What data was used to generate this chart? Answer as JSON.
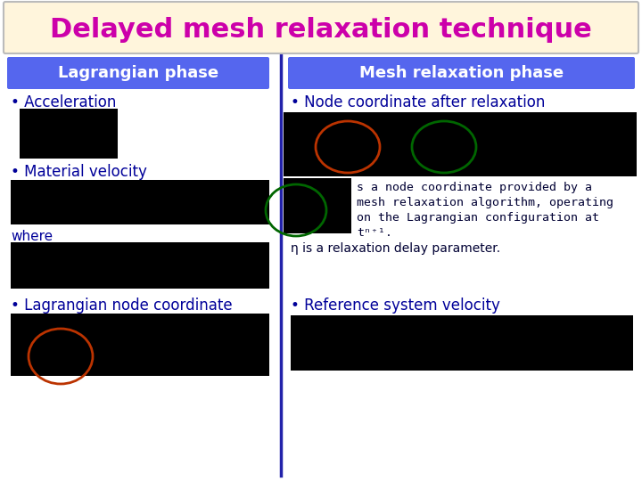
{
  "title": "Delayed mesh relaxation technique",
  "title_color": "#CC00AA",
  "title_bg": "#FFF5DC",
  "title_border": "#BBBBBB",
  "bg_color": "#FFFFFF",
  "left_header": "Lagrangian phase",
  "right_header": "Mesh relaxation phase",
  "header_bg": "#5566EE",
  "header_text_color": "#FFFFFF",
  "divider_color": "#2222AA",
  "text_color": "#000099",
  "body_text_color": "#000033",
  "black_box_color": "#000000",
  "desc_text": "s a node coordinate provided by a\nmesh relaxation algorithm, operating\non the Lagrangian configuration at\nt",
  "eta_text": "η is a relaxation delay parameter."
}
